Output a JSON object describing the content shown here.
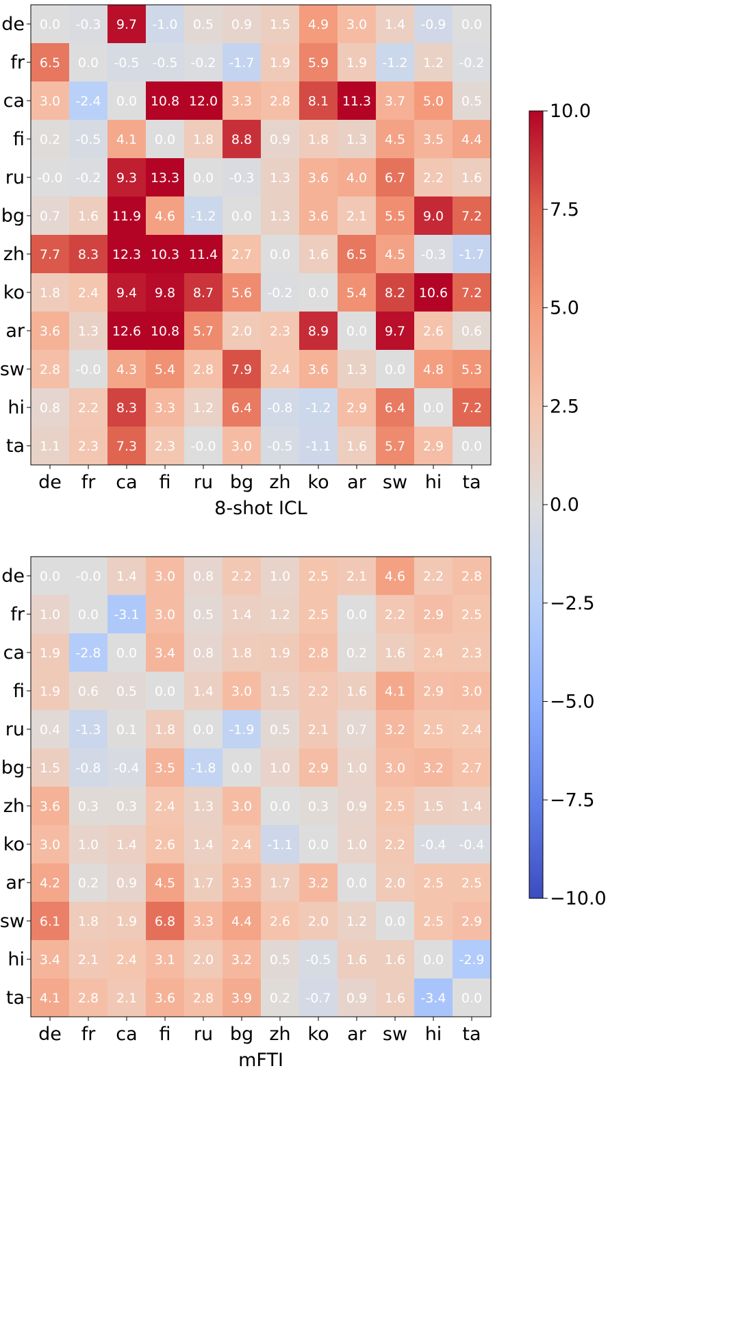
{
  "chart_data": [
    {
      "type": "heatmap",
      "title": "",
      "xlabel": "8-shot ICL",
      "x_categories": [
        "de",
        "fr",
        "ca",
        "fi",
        "ru",
        "bg",
        "zh",
        "ko",
        "ar",
        "sw",
        "hi",
        "ta"
      ],
      "y_categories": [
        "de",
        "fr",
        "ca",
        "fi",
        "ru",
        "bg",
        "zh",
        "ko",
        "ar",
        "sw",
        "hi",
        "ta"
      ],
      "values": [
        [
          "0.0",
          "-0.3",
          "9.7",
          "-1.0",
          "0.5",
          "0.9",
          "1.5",
          "4.9",
          "3.0",
          "1.4",
          "-0.9",
          "0.0"
        ],
        [
          "6.5",
          "0.0",
          "-0.5",
          "-0.5",
          "-0.2",
          "-1.7",
          "1.9",
          "5.9",
          "1.9",
          "-1.2",
          "1.2",
          "-0.2"
        ],
        [
          "3.0",
          "-2.4",
          "0.0",
          "10.8",
          "12.0",
          "3.3",
          "2.8",
          "8.1",
          "11.3",
          "3.7",
          "5.0",
          "0.5"
        ],
        [
          "0.2",
          "-0.5",
          "4.1",
          "0.0",
          "1.8",
          "8.8",
          "0.9",
          "1.8",
          "1.3",
          "4.5",
          "3.5",
          "4.4"
        ],
        [
          "-0.0",
          "-0.2",
          "9.3",
          "13.3",
          "0.0",
          "-0.3",
          "1.3",
          "3.6",
          "4.0",
          "6.7",
          "2.2",
          "1.6"
        ],
        [
          "0.7",
          "1.6",
          "11.9",
          "4.6",
          "-1.2",
          "0.0",
          "1.3",
          "3.6",
          "2.1",
          "5.5",
          "9.0",
          "7.2"
        ],
        [
          "7.7",
          "8.3",
          "12.3",
          "10.3",
          "11.4",
          "2.7",
          "0.0",
          "1.6",
          "6.5",
          "4.5",
          "-0.3",
          "-1.7"
        ],
        [
          "1.8",
          "2.4",
          "9.4",
          "9.8",
          "8.7",
          "5.6",
          "-0.2",
          "0.0",
          "5.4",
          "8.2",
          "10.6",
          "7.2"
        ],
        [
          "3.6",
          "1.3",
          "12.6",
          "10.8",
          "5.7",
          "2.0",
          "2.3",
          "8.9",
          "0.0",
          "9.7",
          "2.6",
          "0.6"
        ],
        [
          "2.8",
          "-0.0",
          "4.3",
          "5.4",
          "2.8",
          "7.9",
          "2.4",
          "3.6",
          "1.3",
          "0.0",
          "4.8",
          "5.3"
        ],
        [
          "0.8",
          "2.2",
          "8.3",
          "3.3",
          "1.2",
          "6.4",
          "-0.8",
          "-1.2",
          "2.9",
          "6.4",
          "0.0",
          "7.2"
        ],
        [
          "1.1",
          "2.3",
          "7.3",
          "2.3",
          "-0.0",
          "3.0",
          "-0.5",
          "-1.1",
          "1.6",
          "5.7",
          "2.9",
          "0.0"
        ]
      ]
    },
    {
      "type": "heatmap",
      "title": "",
      "xlabel": "mFTI",
      "x_categories": [
        "de",
        "fr",
        "ca",
        "fi",
        "ru",
        "bg",
        "zh",
        "ko",
        "ar",
        "sw",
        "hi",
        "ta"
      ],
      "y_categories": [
        "de",
        "fr",
        "ca",
        "fi",
        "ru",
        "bg",
        "zh",
        "ko",
        "ar",
        "sw",
        "hi",
        "ta"
      ],
      "values": [
        [
          "0.0",
          "-0.0",
          "1.4",
          "3.0",
          "0.8",
          "2.2",
          "1.0",
          "2.5",
          "2.1",
          "4.6",
          "2.2",
          "2.8"
        ],
        [
          "1.0",
          "0.0",
          "-3.1",
          "3.0",
          "0.5",
          "1.4",
          "1.2",
          "2.5",
          "0.0",
          "2.2",
          "2.9",
          "2.5"
        ],
        [
          "1.9",
          "-2.8",
          "0.0",
          "3.4",
          "0.8",
          "1.8",
          "1.9",
          "2.8",
          "0.2",
          "1.6",
          "2.4",
          "2.3"
        ],
        [
          "1.9",
          "0.6",
          "0.5",
          "0.0",
          "1.4",
          "3.0",
          "1.5",
          "2.2",
          "1.6",
          "4.1",
          "2.9",
          "3.0"
        ],
        [
          "0.4",
          "-1.3",
          "0.1",
          "1.8",
          "0.0",
          "-1.9",
          "0.5",
          "2.1",
          "0.7",
          "3.2",
          "2.5",
          "2.4"
        ],
        [
          "1.5",
          "-0.8",
          "-0.4",
          "3.5",
          "-1.8",
          "0.0",
          "1.0",
          "2.9",
          "1.0",
          "3.0",
          "3.2",
          "2.7"
        ],
        [
          "3.6",
          "0.3",
          "0.3",
          "2.4",
          "1.3",
          "3.0",
          "0.0",
          "0.3",
          "0.9",
          "2.5",
          "1.5",
          "1.4"
        ],
        [
          "3.0",
          "1.0",
          "1.4",
          "2.6",
          "1.4",
          "2.4",
          "-1.1",
          "0.0",
          "1.0",
          "2.2",
          "-0.4",
          "-0.4"
        ],
        [
          "4.2",
          "0.2",
          "0.9",
          "4.5",
          "1.7",
          "3.3",
          "1.7",
          "3.2",
          "0.0",
          "2.0",
          "2.5",
          "2.5"
        ],
        [
          "6.1",
          "1.8",
          "1.9",
          "6.8",
          "3.3",
          "4.4",
          "2.6",
          "2.0",
          "1.2",
          "0.0",
          "2.5",
          "2.9"
        ],
        [
          "3.4",
          "2.1",
          "2.4",
          "3.1",
          "2.0",
          "3.2",
          "0.5",
          "-0.5",
          "1.6",
          "1.6",
          "0.0",
          "-2.9"
        ],
        [
          "4.1",
          "2.8",
          "2.1",
          "3.6",
          "2.8",
          "3.9",
          "0.2",
          "-0.7",
          "0.9",
          "1.6",
          "-3.4",
          "0.0"
        ]
      ]
    }
  ],
  "colorbar": {
    "colormap": "coolwarm",
    "vmin": -10.0,
    "vmax": 10.0,
    "ticks": [
      10.0,
      7.5,
      5.0,
      2.5,
      0.0,
      -2.5,
      -5.0,
      -7.5,
      -10.0
    ],
    "tick_labels": [
      "10.0",
      "7.5",
      "5.0",
      "2.5",
      "0.0",
      "−2.5",
      "−5.0",
      "−7.5",
      "−10.0"
    ]
  },
  "colors": {
    "cell_text": "#ffffff",
    "axes_frame": "#000000"
  }
}
